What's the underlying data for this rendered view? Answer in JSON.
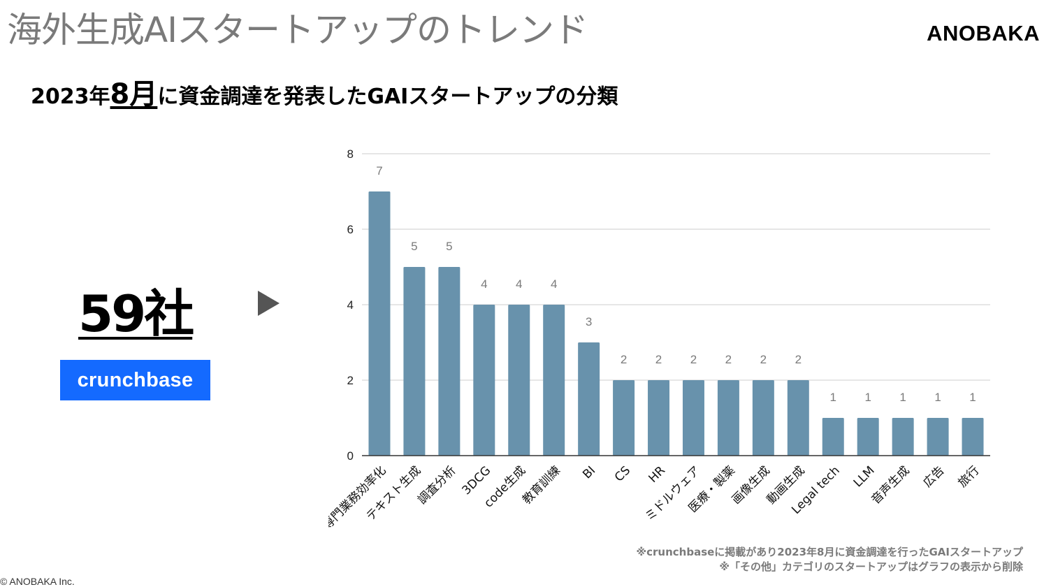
{
  "slide": {
    "title": "海外生成AIスタートアップのトレンド",
    "brand": "ANOBAKA",
    "subtitle_pre": "2023年",
    "subtitle_month": "8月",
    "subtitle_post": "に資金調達を発表したGAIスタートアップの分類",
    "company_count": "59社",
    "source_logo": "crunchbase",
    "notes": [
      "※crunchbaseに掲載があり2023年8月に資金調達を行ったGAIスタートアップ",
      "※「その他」カテゴリのスタートアップはグラフの表示から削除"
    ],
    "copyright": "© ANOBAKA Inc."
  },
  "colors": {
    "bar": "#6892ac",
    "grid": "#cccccc",
    "axis": "#333333",
    "value_label": "#7a7a7a",
    "source_logo_bg": "#146aff"
  },
  "chart_data": {
    "type": "bar",
    "categories": [
      "専門業務効率化",
      "テキスト生成",
      "調査分析",
      "3DCG",
      "code生成",
      "教育訓練",
      "BI",
      "CS",
      "HR",
      "ミドルウェア",
      "医療・製薬",
      "画像生成",
      "動画生成",
      "Legal tech",
      "LLM",
      "音声生成",
      "広告",
      "旅行"
    ],
    "values": [
      7,
      5,
      5,
      4,
      4,
      4,
      3,
      2,
      2,
      2,
      2,
      2,
      2,
      1,
      1,
      1,
      1,
      1
    ],
    "ylim": [
      0,
      8
    ],
    "yticks": [
      0,
      2,
      4,
      6,
      8
    ],
    "data_labels": true,
    "grid": true,
    "legend": "none",
    "xlabel": "",
    "ylabel": ""
  }
}
